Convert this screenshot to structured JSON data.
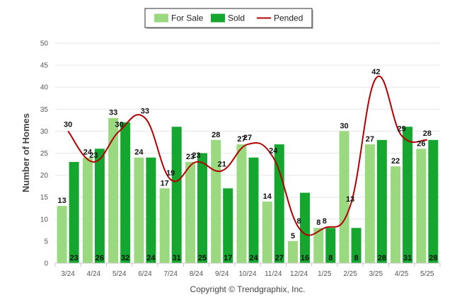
{
  "chart_data": {
    "type": "bar",
    "categories": [
      "3/24",
      "4/24",
      "5/24",
      "6/24",
      "7/24",
      "8/24",
      "9/24",
      "10/24",
      "11/24",
      "12/24",
      "1/25",
      "2/25",
      "3/25",
      "4/25",
      "5/25"
    ],
    "series": [
      {
        "name": "For Sale",
        "type": "bar",
        "color": "#9ad97f",
        "values": [
          13,
          24,
          33,
          24,
          17,
          23,
          28,
          27,
          14,
          5,
          8,
          30,
          27,
          22,
          26
        ]
      },
      {
        "name": "Sold",
        "type": "bar",
        "color": "#14a62f",
        "values": [
          23,
          26,
          32,
          24,
          31,
          25,
          17,
          24,
          27,
          16,
          8,
          8,
          28,
          31,
          28
        ]
      },
      {
        "name": "Pended",
        "type": "line",
        "color": "#b30000",
        "values": [
          30,
          23,
          30,
          33,
          19,
          23,
          21,
          27,
          24,
          8,
          8,
          13,
          42,
          29,
          28
        ]
      }
    ],
    "xlabel": "",
    "ylabel": "Number of Homes",
    "ylim": [
      0,
      50
    ],
    "yticks": [
      0,
      5,
      10,
      15,
      20,
      25,
      30,
      35,
      40,
      45,
      50
    ],
    "grid": true,
    "legend_position": "top-center"
  },
  "footer": {
    "credit": "Copyright © Trendgraphix, Inc."
  }
}
